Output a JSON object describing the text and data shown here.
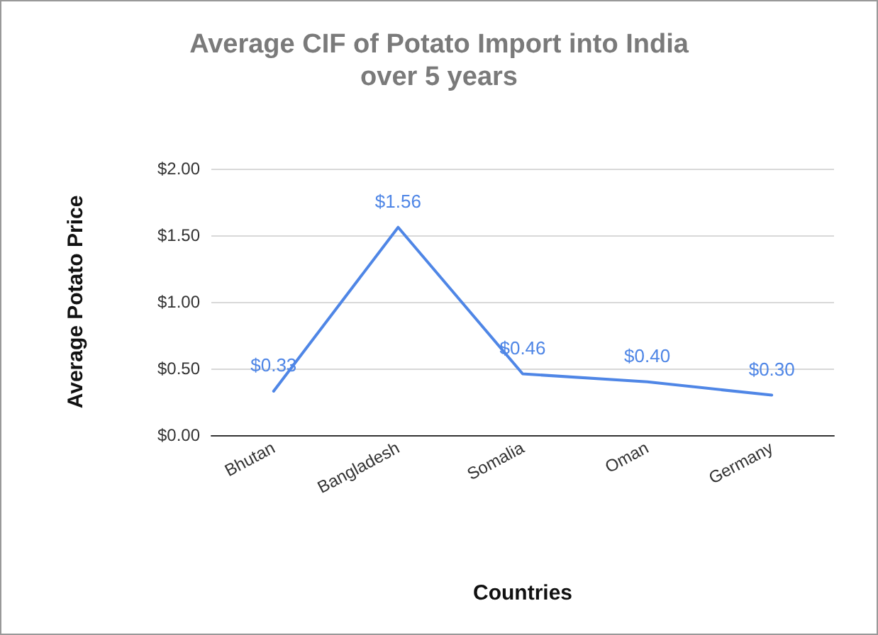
{
  "chart_data": {
    "type": "line",
    "title": "Average CIF of Potato Import into India\nover 5 years",
    "xlabel": "Countries",
    "ylabel": "Average Potato Price",
    "categories": [
      "Bhutan",
      "Bangladesh",
      "Somalia",
      "Oman",
      "Germany"
    ],
    "series": [
      {
        "color": "#4f86e6",
        "values": [
          0.33,
          1.56,
          0.46,
          0.4,
          0.3
        ],
        "value_labels": [
          "$0.33",
          "$1.56",
          "$0.46",
          "$0.40",
          "$0.30"
        ]
      }
    ],
    "ylim": [
      0,
      2
    ],
    "yticks": [
      {
        "value": 0,
        "label": "$0.00"
      },
      {
        "value": 0.5,
        "label": "$0.50"
      },
      {
        "value": 1,
        "label": "$1.00"
      },
      {
        "value": 1.5,
        "label": "$1.50"
      },
      {
        "value": 2,
        "label": "$2.00"
      }
    ],
    "grid": "y",
    "marker": "none",
    "line_style": "solid"
  }
}
